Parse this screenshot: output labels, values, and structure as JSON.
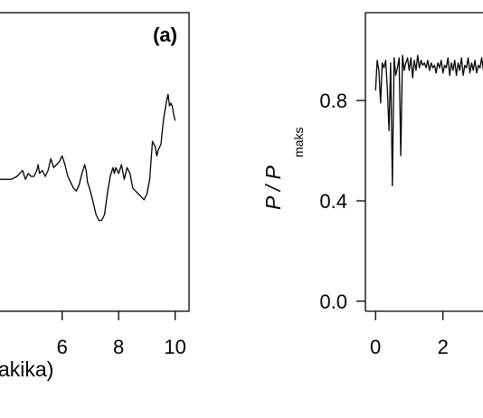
{
  "chart_data": [
    {
      "type": "line",
      "panel_label": "(a)",
      "xlabel_visible": "akika)",
      "x_ticks": [
        6,
        8,
        10
      ],
      "xlim": [
        3.8,
        10.3
      ],
      "ylim": [
        0,
        1
      ],
      "line_color": "#000000",
      "series": [
        {
          "x": [
            3.8,
            4.0,
            4.2,
            4.4,
            4.5,
            4.6,
            4.7,
            4.8,
            4.9,
            5.0,
            5.1,
            5.15,
            5.2,
            5.3,
            5.4,
            5.5,
            5.6,
            5.7,
            5.8,
            5.9,
            6.0,
            6.1,
            6.2,
            6.3,
            6.4,
            6.5,
            6.6,
            6.7,
            6.8,
            6.85,
            6.9,
            7.0,
            7.1,
            7.2,
            7.3,
            7.4,
            7.5,
            7.6,
            7.7,
            7.8,
            7.85,
            7.9,
            8.0,
            8.1,
            8.2,
            8.3,
            8.4,
            8.5,
            8.6,
            8.7,
            8.8,
            8.9,
            9.0,
            9.1,
            9.2,
            9.3,
            9.35,
            9.4,
            9.5,
            9.55,
            9.6,
            9.7,
            9.75,
            9.8,
            9.85,
            9.9,
            9.95,
            10.0
          ],
          "y": [
            0.45,
            0.45,
            0.45,
            0.46,
            0.47,
            0.48,
            0.45,
            0.47,
            0.46,
            0.46,
            0.48,
            0.5,
            0.47,
            0.48,
            0.46,
            0.48,
            0.52,
            0.49,
            0.5,
            0.51,
            0.53,
            0.5,
            0.46,
            0.44,
            0.42,
            0.41,
            0.43,
            0.47,
            0.5,
            0.48,
            0.44,
            0.41,
            0.37,
            0.33,
            0.31,
            0.31,
            0.33,
            0.4,
            0.46,
            0.49,
            0.47,
            0.49,
            0.47,
            0.5,
            0.45,
            0.49,
            0.47,
            0.42,
            0.41,
            0.4,
            0.39,
            0.38,
            0.4,
            0.45,
            0.58,
            0.56,
            0.53,
            0.55,
            0.57,
            0.62,
            0.66,
            0.72,
            0.74,
            0.7,
            0.71,
            0.7,
            0.67,
            0.65
          ]
        }
      ]
    },
    {
      "type": "line",
      "ylabel": "P / P",
      "ylabel_subscript": "maks",
      "y_ticks": [
        "0.0",
        "0.4",
        "0.8"
      ],
      "x_ticks": [
        "0",
        "2"
      ],
      "xlim": [
        -0.3,
        3.35
      ],
      "ylim": [
        -0.04,
        1.15
      ],
      "line_color": "#000000",
      "series": [
        {
          "x": [
            0.0,
            0.05,
            0.1,
            0.15,
            0.2,
            0.25,
            0.3,
            0.35,
            0.4,
            0.45,
            0.5,
            0.55,
            0.6,
            0.65,
            0.7,
            0.75,
            0.8,
            0.85,
            0.9,
            0.95,
            1.0,
            1.05,
            1.1,
            1.15,
            1.2,
            1.25,
            1.3,
            1.35,
            1.4,
            1.45,
            1.5,
            1.55,
            1.6,
            1.65,
            1.7,
            1.75,
            1.8,
            1.85,
            1.9,
            1.95,
            2.0,
            2.05,
            2.1,
            2.15,
            2.2,
            2.25,
            2.3,
            2.35,
            2.4,
            2.45,
            2.5,
            2.55,
            2.6,
            2.65,
            2.7,
            2.75,
            2.8,
            2.85,
            2.9,
            2.95,
            3.0,
            3.05,
            3.1,
            3.15,
            3.2,
            3.25,
            3.3
          ],
          "y": [
            0.84,
            0.96,
            0.92,
            0.79,
            0.95,
            0.93,
            0.96,
            0.85,
            0.68,
            0.95,
            0.46,
            0.97,
            0.9,
            0.93,
            0.97,
            0.58,
            0.98,
            0.92,
            0.95,
            0.97,
            0.92,
            0.97,
            0.89,
            0.96,
            0.92,
            0.98,
            0.93,
            0.96,
            0.94,
            0.95,
            0.93,
            0.96,
            0.92,
            0.95,
            0.93,
            0.94,
            0.91,
            0.95,
            0.93,
            0.96,
            0.91,
            0.94,
            0.93,
            0.97,
            0.9,
            0.95,
            0.92,
            0.96,
            0.9,
            0.95,
            0.92,
            0.97,
            0.9,
            0.94,
            0.93,
            0.97,
            0.91,
            0.95,
            0.92,
            0.96,
            0.91,
            0.94,
            0.93,
            0.97,
            0.92,
            0.95,
            0.93
          ]
        }
      ]
    }
  ]
}
